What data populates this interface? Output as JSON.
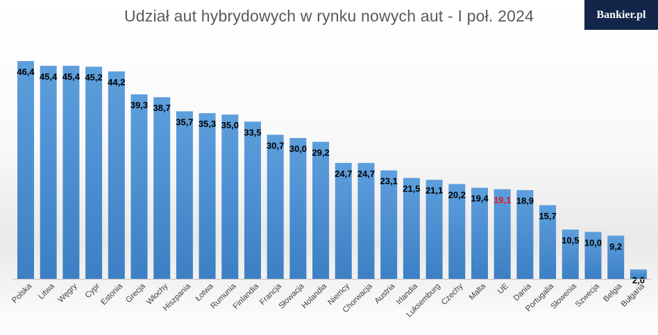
{
  "chart_data": {
    "type": "bar",
    "title": "Udział aut hybrydowych w rynku nowych aut - I poł. 2024",
    "categories": [
      "Polska",
      "Litwa",
      "Węgry",
      "Cypr",
      "Estonia",
      "Grecja",
      "Włochy",
      "Hiszpania",
      "Łotwa",
      "Rumunia",
      "Finlandia",
      "Francja",
      "Słowacja",
      "Holandia",
      "Niemcy",
      "Chorwacja",
      "Austria",
      "Irlandia",
      "Luksemburg",
      "Czechy",
      "Malta",
      "UE",
      "Dania",
      "Portugalia",
      "Słowenia",
      "Szwecja",
      "Belgia",
      "Bułgaria"
    ],
    "values": [
      46.4,
      45.4,
      45.4,
      45.2,
      44.2,
      39.3,
      38.7,
      35.7,
      35.3,
      35.0,
      33.5,
      30.7,
      30.0,
      29.2,
      24.7,
      24.7,
      23.1,
      21.5,
      21.1,
      20.2,
      19.4,
      19.1,
      18.9,
      15.7,
      10.5,
      10.0,
      9.2,
      2.0
    ],
    "value_labels": [
      "46,4",
      "45,4",
      "45,4",
      "45,2",
      "44,2",
      "39,3",
      "38,7",
      "35,7",
      "35,3",
      "35,0",
      "33,5",
      "30,7",
      "30,0",
      "29,2",
      "24,7",
      "24,7",
      "23,1",
      "21,5",
      "21,1",
      "20,2",
      "19,4",
      "19,1",
      "18,9",
      "15,7",
      "10,5",
      "10,0",
      "9,2",
      "2,0"
    ],
    "highlight_index": 21,
    "bar_color": "#4a8fd3",
    "label_color": "#000000",
    "highlight_label_color": "#e8141c",
    "ylim": [
      0,
      47
    ],
    "grid": false,
    "legend": "none"
  },
  "brand": {
    "logo_text": "Bankier.pl"
  }
}
